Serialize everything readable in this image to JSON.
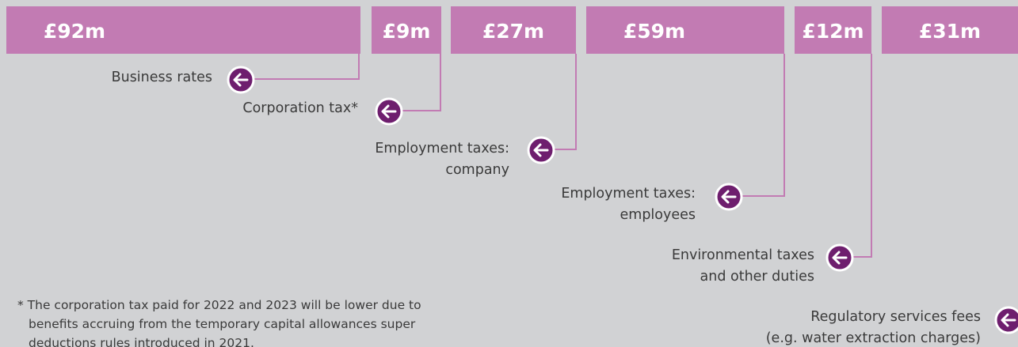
{
  "segments": [
    {
      "value": "£92m",
      "label": [
        "Business rates"
      ]
    },
    {
      "value": "£9m",
      "label": [
        "Corporation tax*"
      ]
    },
    {
      "value": "£27m",
      "label": [
        "Employment taxes:",
        "company"
      ]
    },
    {
      "value": "£59m",
      "label": [
        "Employment taxes:",
        "employees"
      ]
    },
    {
      "value": "£12m",
      "label": [
        "Environmental taxes",
        "and other duties"
      ]
    },
    {
      "value": "£31m",
      "label": [
        "Regulatory services fees",
        "(e.g. water extraction charges)"
      ]
    }
  ],
  "footnote": [
    "* The corporation tax paid for 2022 and 2023 will be lower due to",
    "benefits accruing from the temporary capital allowances super",
    "deductions rules introduced in 2021."
  ]
}
